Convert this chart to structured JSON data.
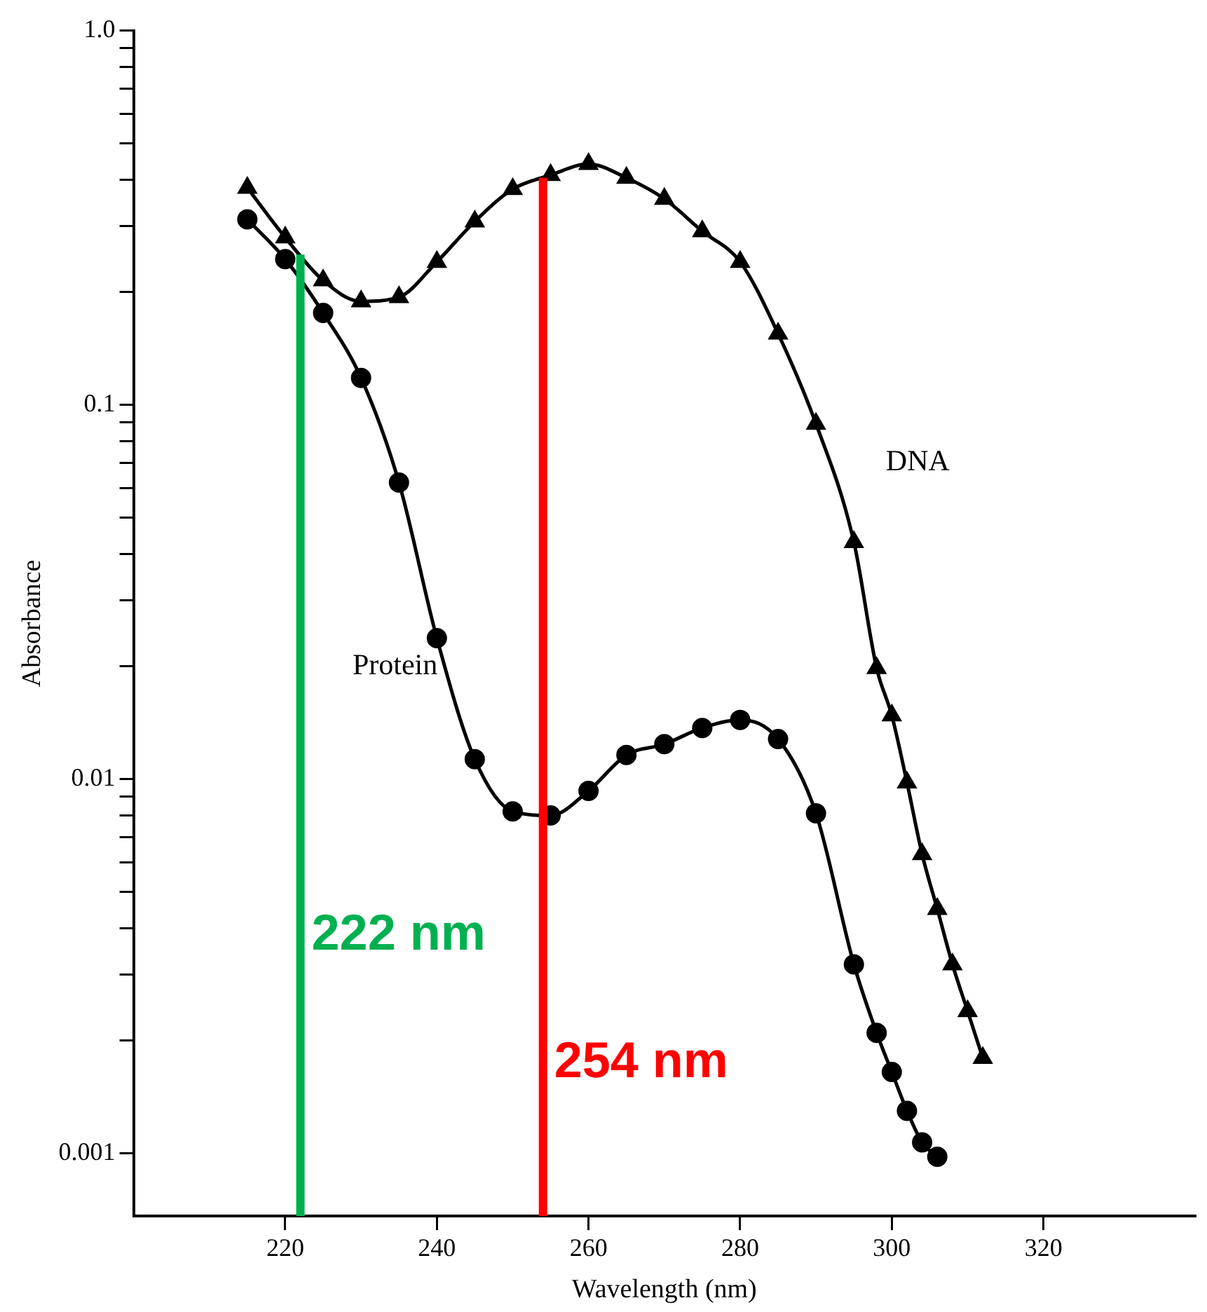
{
  "chart_data": {
    "type": "line",
    "xlabel": "Wavelength (nm)",
    "ylabel": "Absorbance",
    "log": "y",
    "grid": false,
    "legend": false,
    "xlim": [
      200,
      340
    ],
    "xticks": [
      220,
      240,
      260,
      280,
      300,
      320
    ],
    "ylim": [
      0.00068,
      1
    ],
    "yticks": [
      {
        "value": 0.001,
        "label": "0.001"
      },
      {
        "value": 0.002,
        "label": null
      },
      {
        "value": 0.003,
        "label": null
      },
      {
        "value": 0.004,
        "label": null
      },
      {
        "value": 0.005,
        "label": null
      },
      {
        "value": 0.006,
        "label": null
      },
      {
        "value": 0.007,
        "label": null
      },
      {
        "value": 0.008,
        "label": null
      },
      {
        "value": 0.009,
        "label": null
      },
      {
        "value": 0.01,
        "label": "0.01"
      },
      {
        "value": 0.02,
        "label": null
      },
      {
        "value": 0.03,
        "label": null
      },
      {
        "value": 0.04,
        "label": null
      },
      {
        "value": 0.05,
        "label": null
      },
      {
        "value": 0.06,
        "label": null
      },
      {
        "value": 0.07,
        "label": null
      },
      {
        "value": 0.08,
        "label": null
      },
      {
        "value": 0.09,
        "label": null
      },
      {
        "value": 0.1,
        "label": "0.1"
      },
      {
        "value": 0.2,
        "label": null
      },
      {
        "value": 0.3,
        "label": null
      },
      {
        "value": 0.4,
        "label": null
      },
      {
        "value": 0.5,
        "label": null
      },
      {
        "value": 0.6,
        "label": null
      },
      {
        "value": 0.7,
        "label": null
      },
      {
        "value": 0.8,
        "label": null
      },
      {
        "value": 0.9,
        "label": null
      },
      {
        "value": 1,
        "label": "1.0"
      }
    ],
    "series": [
      {
        "name": "DNA",
        "color": "#000000",
        "marker": "triangle",
        "x": [
          215,
          220,
          225,
          230,
          235,
          240,
          245,
          250,
          255,
          260,
          265,
          270,
          275,
          280,
          285,
          290,
          295,
          298,
          300,
          302,
          304,
          306,
          308,
          310,
          312
        ],
        "values": [
          0.38,
          0.28,
          0.215,
          0.189,
          0.194,
          0.241,
          0.309,
          0.377,
          0.411,
          0.44,
          0.404,
          0.355,
          0.291,
          0.241,
          0.155,
          0.089,
          0.043,
          0.0198,
          0.0148,
          0.0098,
          0.0063,
          0.0045,
          0.0032,
          0.0024,
          0.0018
        ]
      },
      {
        "name": "Protein",
        "color": "#000000",
        "marker": "circle",
        "x": [
          215,
          220,
          225,
          230,
          235,
          240,
          245,
          250,
          255,
          260,
          265,
          270,
          275,
          280,
          285,
          290,
          295,
          298,
          300,
          302,
          304,
          306
        ],
        "values": [
          0.313,
          0.245,
          0.176,
          0.118,
          0.062,
          0.0238,
          0.0113,
          0.0082,
          0.008,
          0.0093,
          0.0116,
          0.0124,
          0.0137,
          0.0144,
          0.0128,
          0.0081,
          0.0032,
          0.0021,
          0.00165,
          0.0013,
          0.00107,
          0.00098
        ]
      }
    ],
    "ref_lines": [
      {
        "axis": "x",
        "value": 222,
        "label": "222 nm",
        "color": "#00b050"
      },
      {
        "axis": "x",
        "value": 254,
        "label": "254 nm",
        "color": "#ff0000"
      }
    ]
  }
}
